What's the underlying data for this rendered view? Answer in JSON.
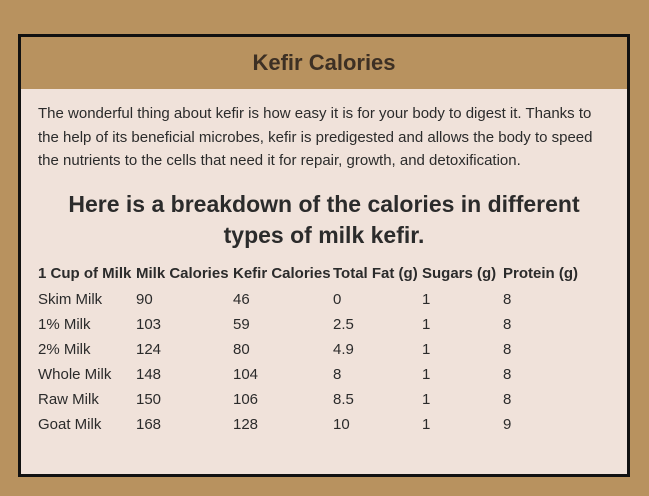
{
  "header": {
    "title": "Kefir Calories"
  },
  "intro": "The wonderful thing about kefir is how easy it is for your body to digest it. Thanks to the help of its beneficial microbes, kefir is predigested and allows the body to speed the nutrients to the cells that need it for repair, growth, and detoxification.",
  "subheading": "Here is a breakdown of the calories in different types of milk kefir.",
  "table": {
    "columns": [
      "1 Cup of Milk",
      "Milk Calories",
      "Kefir Calories",
      "Total Fat (g)",
      "Sugars (g)",
      "Protein (g)"
    ],
    "rows": [
      [
        "Skim Milk",
        "90",
        "46",
        "0",
        "1",
        "8"
      ],
      [
        "1% Milk",
        "103",
        "59",
        "2.5",
        "1",
        "8"
      ],
      [
        "2% Milk",
        "124",
        "80",
        "4.9",
        "1",
        "8"
      ],
      [
        "Whole Milk",
        "148",
        "104",
        "8",
        "1",
        "8"
      ],
      [
        "Raw Milk",
        "150",
        "106",
        "8.5",
        "1",
        "8"
      ],
      [
        "Goat Milk",
        "168",
        "128",
        "10",
        "1",
        "9"
      ]
    ]
  }
}
